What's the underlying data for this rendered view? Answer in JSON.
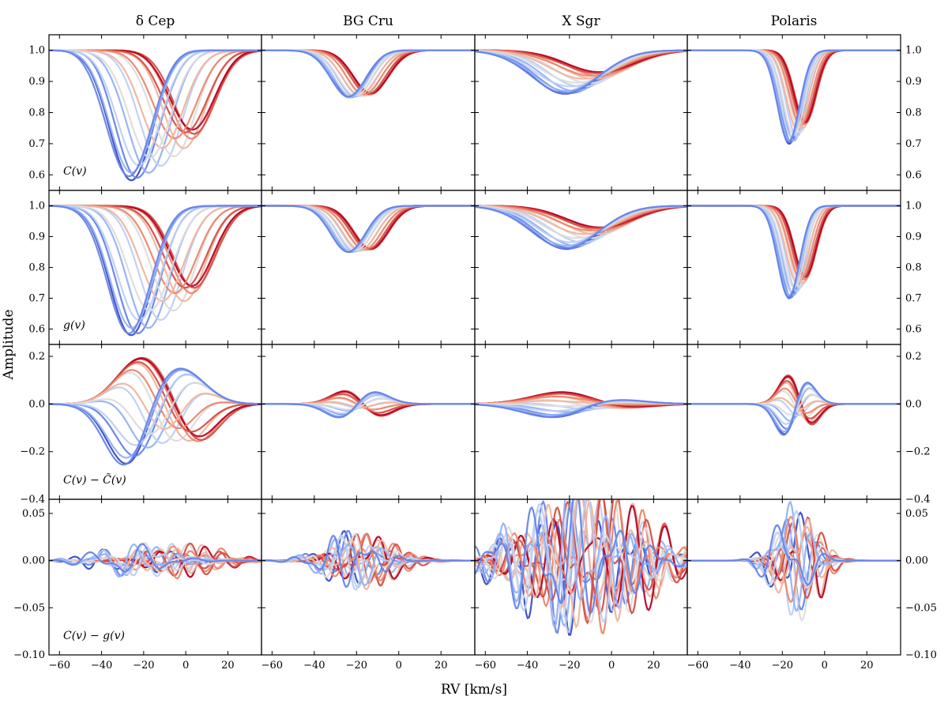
{
  "figure": {
    "xlabel": "RV [km/s]",
    "ylabel": "Amplitude",
    "columns": [
      "δ Cep",
      "BG Cru",
      "X Sgr",
      "Polaris"
    ],
    "row_labels": [
      "C(v)",
      "g(v)",
      "C(v) − C̃(v)",
      "C(v) − g(v)"
    ]
  },
  "chart_data": {
    "type": "line",
    "layout": "4x4 grid of panels, shared x axis per column, shared y axis per row",
    "colormap": {
      "name": "coolwarm (pulsation phase)",
      "colors": [
        "#3b4cc0",
        "#7396f5",
        "#b2ccfb",
        "#dddcdc",
        "#f6a789",
        "#e0654f",
        "#b40426"
      ]
    },
    "xlim": [
      -65,
      36
    ],
    "xticks": [
      -60,
      -40,
      -20,
      0,
      20
    ],
    "x_tick_labels": [
      "−60",
      "−40",
      "−20",
      "0",
      "20"
    ],
    "rows": [
      {
        "label": "C(v)",
        "ylim": [
          0.55,
          1.05
        ],
        "yticks": [
          0.6,
          0.7,
          0.8,
          0.9,
          1.0
        ],
        "y_tick_labels": [
          "0.6",
          "0.7",
          "0.8",
          "0.9",
          "1.0"
        ]
      },
      {
        "label": "g(v)",
        "ylim": [
          0.55,
          1.05
        ],
        "yticks": [
          0.6,
          0.7,
          0.8,
          0.9,
          1.0
        ],
        "y_tick_labels": [
          "0.6",
          "0.7",
          "0.8",
          "0.9",
          "1.0"
        ]
      },
      {
        "label": "C(v) − C̃(v)",
        "ylim": [
          -0.4,
          0.25
        ],
        "yticks": [
          -0.4,
          -0.2,
          0.0,
          0.2
        ],
        "y_tick_labels": [
          "−0.4",
          "−0.2",
          "0.0",
          "0.2"
        ]
      },
      {
        "label": "C(v) − g(v)",
        "ylim": [
          -0.1,
          0.065
        ],
        "yticks": [
          -0.1,
          -0.05,
          0.0,
          0.05
        ],
        "y_tick_labels": [
          "−0.10",
          "−0.05",
          "0.00",
          "0.05"
        ]
      }
    ],
    "stars": [
      {
        "name": "δ Cep",
        "center_min": -27,
        "center_max": 4,
        "depth_min": 0.26,
        "depth_max": 0.42,
        "sigma": 10,
        "resid_amp": 0.015,
        "diff_amp": 0.012
      },
      {
        "name": "BG Cru",
        "center_min": -24,
        "center_max": -13,
        "depth_min": 0.14,
        "depth_max": 0.15,
        "sigma": 8.5,
        "resid_amp": 0.04,
        "diff_amp": 0.02
      },
      {
        "name": "X Sgr",
        "center_min": -22,
        "center_max": -5,
        "depth_min": 0.07,
        "depth_max": 0.14,
        "sigma": 16,
        "resid_amp": 0.04,
        "diff_amp": 0.05
      },
      {
        "name": "Polaris",
        "center_min": -17,
        "center_max": -9,
        "depth_min": 0.23,
        "depth_max": 0.3,
        "sigma": 5,
        "resid_amp": 0.05,
        "diff_amp": 0.04
      }
    ]
  }
}
